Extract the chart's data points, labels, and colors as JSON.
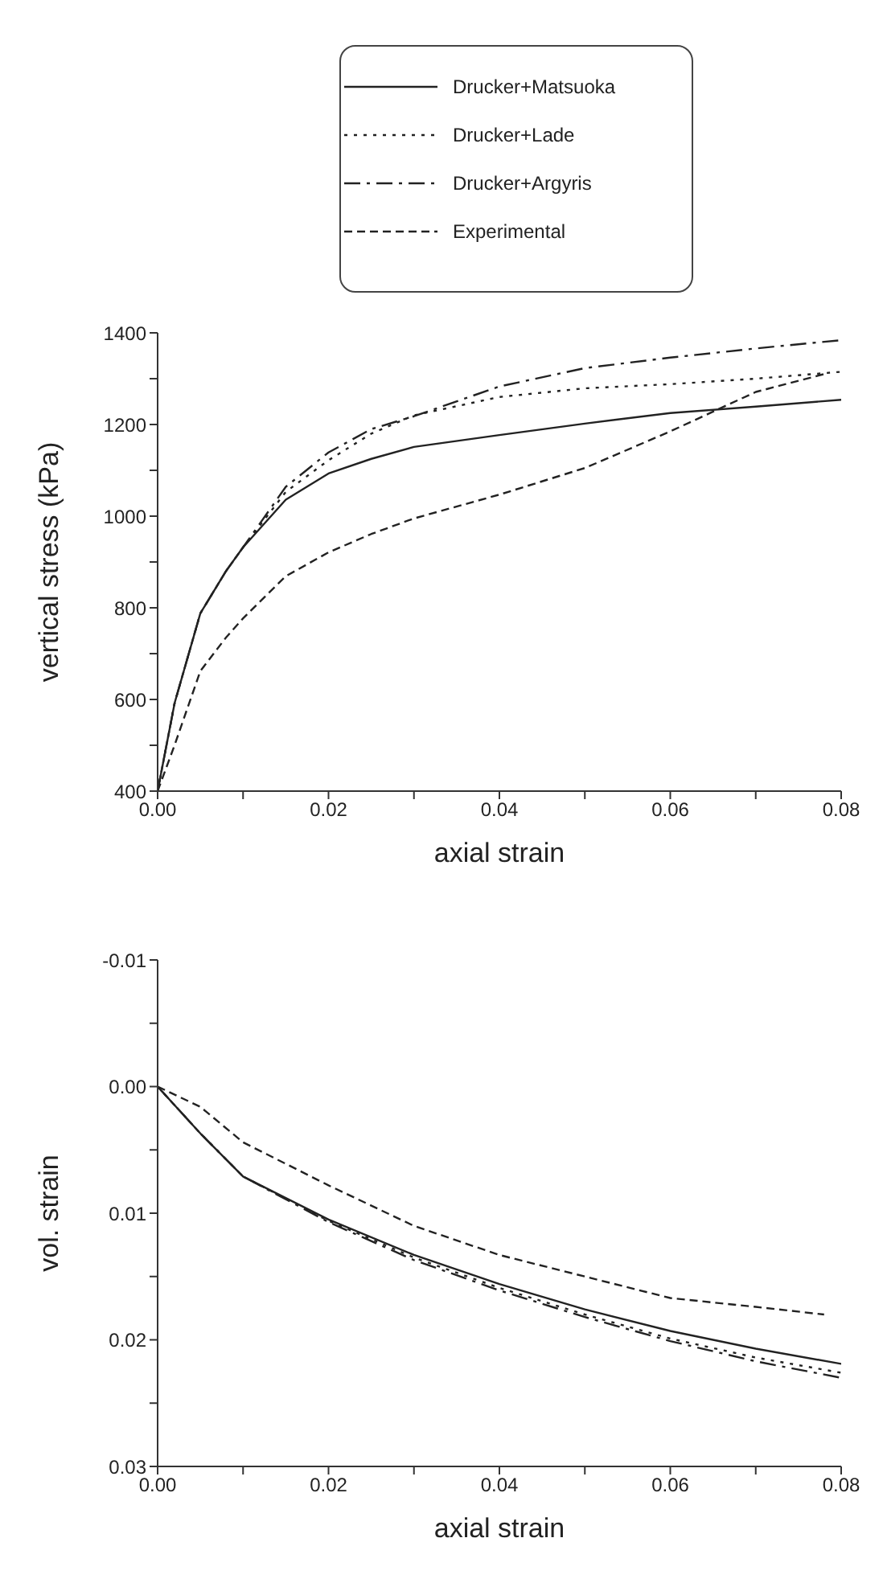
{
  "chart_data": [
    {
      "type": "line",
      "xlabel": "axial strain",
      "ylabel": "vertical stress (kPa)",
      "legend": "top",
      "grid": false,
      "marker": "none",
      "x": [
        0,
        0.002,
        0.005,
        0.008,
        0.01,
        0.015,
        0.02,
        0.025,
        0.03,
        0.04,
        0.05,
        0.06,
        0.07,
        0.08
      ],
      "xlim": [
        0,
        0.08
      ],
      "xticks": [
        {
          "value": 0,
          "label": "0.00"
        },
        {
          "value": 0.01,
          "label": null
        },
        {
          "value": 0.02,
          "label": "0.02"
        },
        {
          "value": 0.03,
          "label": null
        },
        {
          "value": 0.04,
          "label": "0.04"
        },
        {
          "value": 0.05,
          "label": null
        },
        {
          "value": 0.06,
          "label": "0.06"
        },
        {
          "value": 0.07,
          "label": null
        },
        {
          "value": 0.08,
          "label": "0.08"
        }
      ],
      "ylim": [
        400,
        1400
      ],
      "yticks": [
        400,
        {
          "value": 500,
          "label": null
        },
        600,
        {
          "value": 700,
          "label": null
        },
        800,
        {
          "value": 900,
          "label": null
        },
        1000,
        {
          "value": 1100,
          "label": null
        },
        1200,
        {
          "value": 1300,
          "label": null
        },
        1400
      ],
      "series": [
        {
          "name": "Drucker+Matsuoka",
          "color": "#222222",
          "line_style": "solid",
          "values": [
            400,
            593,
            788,
            880,
            932,
            1036,
            1093,
            1125,
            1151,
            1177,
            1202,
            1225,
            1239,
            1254
          ]
        },
        {
          "name": "Drucker+Lade",
          "color": "#222222",
          "line_style": "dotted",
          "values": [
            400,
            593,
            788,
            880,
            932,
            1053,
            1122,
            1180,
            1220,
            1260,
            1279,
            1288,
            1300,
            1315
          ]
        },
        {
          "name": "Drucker+Argyris",
          "color": "#222222",
          "line_style": "dashdot",
          "values": [
            400,
            593,
            788,
            880,
            932,
            1064,
            1139,
            1190,
            1218,
            1283,
            1323,
            1346,
            1366,
            1384
          ]
        },
        {
          "name": "Experimental",
          "color": "#222222",
          "line_style": "dashed",
          "x": [
            0,
            0.002,
            0.005,
            0.008,
            0.01,
            0.015,
            0.02,
            0.025,
            0.03,
            0.04,
            0.05,
            0.06,
            0.07,
            0.078
          ],
          "values": [
            400,
            501,
            662,
            735,
            777,
            869,
            921,
            961,
            995,
            1047,
            1105,
            1185,
            1271,
            1310
          ]
        }
      ]
    },
    {
      "type": "line",
      "xlabel": "axial strain",
      "ylabel": "vol. strain",
      "legend": false,
      "grid": false,
      "marker": "none",
      "x": [
        0,
        0.005,
        0.01,
        0.02,
        0.03,
        0.04,
        0.05,
        0.06,
        0.07,
        0.08
      ],
      "xlim": [
        0,
        0.08
      ],
      "xticks": [
        {
          "value": 0,
          "label": "0.00"
        },
        {
          "value": 0.01,
          "label": null
        },
        {
          "value": 0.02,
          "label": "0.02"
        },
        {
          "value": 0.03,
          "label": null
        },
        {
          "value": 0.04,
          "label": "0.04"
        },
        {
          "value": 0.05,
          "label": null
        },
        {
          "value": 0.06,
          "label": "0.06"
        },
        {
          "value": 0.07,
          "label": null
        },
        {
          "value": 0.08,
          "label": "0.08"
        }
      ],
      "ylim": [
        0.03,
        -0.01
      ],
      "yticks": [
        {
          "value": -0.01,
          "label": "-0.01"
        },
        {
          "value": -0.005,
          "label": null
        },
        {
          "value": 0,
          "label": "0.00"
        },
        {
          "value": 0.005,
          "label": null
        },
        {
          "value": 0.01,
          "label": "0.01"
        },
        {
          "value": 0.015,
          "label": null
        },
        {
          "value": 0.02,
          "label": "0.02"
        },
        {
          "value": 0.025,
          "label": null
        },
        {
          "value": 0.03,
          "label": "0.03"
        }
      ],
      "series": [
        {
          "color": "#222222",
          "line_style": "solid",
          "values": [
            0,
            0.0037,
            0.0071,
            0.0105,
            0.0133,
            0.0156,
            0.0176,
            0.0193,
            0.0207,
            0.0219
          ]
        },
        {
          "color": "#222222",
          "line_style": "dotted",
          "values": [
            0,
            0.0037,
            0.0071,
            0.0106,
            0.0135,
            0.0159,
            0.018,
            0.0199,
            0.0214,
            0.0226
          ]
        },
        {
          "color": "#222222",
          "line_style": "dashdot",
          "values": [
            0,
            0.0037,
            0.0071,
            0.0107,
            0.0137,
            0.0161,
            0.0182,
            0.0201,
            0.0217,
            0.023
          ]
        },
        {
          "color": "#222222",
          "line_style": "dashed",
          "x": [
            0,
            0.005,
            0.01,
            0.02,
            0.03,
            0.04,
            0.05,
            0.06,
            0.07,
            0.078
          ],
          "values": [
            0,
            0.0016,
            0.0044,
            0.0078,
            0.011,
            0.0133,
            0.015,
            0.0167,
            0.0174,
            0.018
          ]
        }
      ]
    }
  ]
}
